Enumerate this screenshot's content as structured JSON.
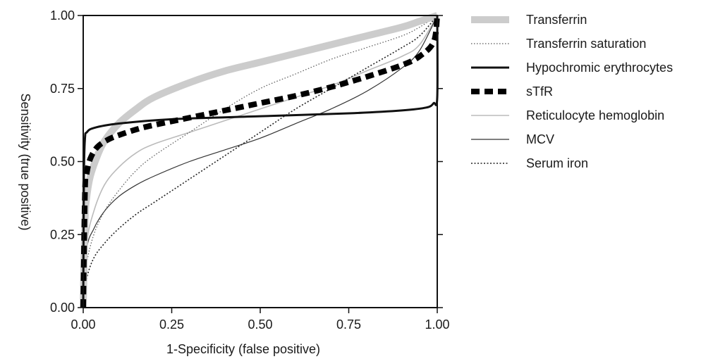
{
  "chart_data": {
    "type": "line",
    "xlabel": "1-Specificity (false positive)",
    "ylabel": "Sensitivity (true positive)",
    "xlim": [
      0,
      1
    ],
    "ylim": [
      0,
      1
    ],
    "xticks": [
      "0.00",
      "0.25",
      "0.50",
      "0.75",
      "1.00"
    ],
    "yticks": [
      "0.00",
      "0.25",
      "0.50",
      "0.75",
      "1.00"
    ],
    "grid": false,
    "legend": "right",
    "series": [
      {
        "name": "Transferrin",
        "style": "thick-light-gray",
        "color": "#cccccc",
        "x": [
          0,
          0.005,
          0.01,
          0.02,
          0.04,
          0.06,
          0.1,
          0.15,
          0.2,
          0.3,
          0.4,
          0.5,
          0.6,
          0.7,
          0.8,
          0.9,
          0.95,
          1.0
        ],
        "y": [
          0,
          0.3,
          0.38,
          0.45,
          0.52,
          0.57,
          0.63,
          0.68,
          0.72,
          0.77,
          0.81,
          0.84,
          0.87,
          0.9,
          0.93,
          0.96,
          0.98,
          1.0
        ]
      },
      {
        "name": "Transferrin saturation",
        "style": "dotted-thin",
        "color": "#555555",
        "x": [
          0,
          0.01,
          0.03,
          0.06,
          0.1,
          0.15,
          0.2,
          0.3,
          0.4,
          0.5,
          0.6,
          0.7,
          0.8,
          0.9,
          0.95,
          1.0
        ],
        "y": [
          0,
          0.15,
          0.25,
          0.33,
          0.4,
          0.47,
          0.52,
          0.6,
          0.68,
          0.75,
          0.8,
          0.85,
          0.89,
          0.93,
          0.96,
          1.0
        ]
      },
      {
        "name": "Hypochromic erythrocytes",
        "style": "solid-medium-black",
        "color": "#111111",
        "x": [
          0,
          0.002,
          0.005,
          0.01,
          0.03,
          0.1,
          0.25,
          0.5,
          0.75,
          0.9,
          0.97,
          0.99,
          1.0,
          1.0
        ],
        "y": [
          0,
          0.45,
          0.58,
          0.6,
          0.615,
          0.63,
          0.645,
          0.655,
          0.665,
          0.675,
          0.685,
          0.7,
          0.72,
          1.0
        ]
      },
      {
        "name": "sTfR",
        "style": "thick-dashed-black",
        "color": "#000000",
        "x": [
          0,
          0.005,
          0.01,
          0.02,
          0.04,
          0.07,
          0.1,
          0.15,
          0.2,
          0.3,
          0.4,
          0.5,
          0.6,
          0.7,
          0.8,
          0.9,
          0.95,
          0.99,
          1.0
        ],
        "y": [
          0,
          0.4,
          0.46,
          0.51,
          0.55,
          0.575,
          0.59,
          0.61,
          0.625,
          0.65,
          0.675,
          0.7,
          0.725,
          0.755,
          0.79,
          0.83,
          0.86,
          0.91,
          1.0
        ]
      },
      {
        "name": "Reticulocyte hemoglobin",
        "style": "solid-thin-gray",
        "color": "#bbbbbb",
        "x": [
          0,
          0.01,
          0.03,
          0.06,
          0.1,
          0.15,
          0.2,
          0.3,
          0.4,
          0.5,
          0.6,
          0.7,
          0.8,
          0.9,
          0.95,
          1.0
        ],
        "y": [
          0,
          0.22,
          0.33,
          0.42,
          0.48,
          0.53,
          0.56,
          0.6,
          0.64,
          0.68,
          0.72,
          0.76,
          0.81,
          0.86,
          0.9,
          1.0
        ]
      },
      {
        "name": "MCV",
        "style": "solid-thin-black",
        "color": "#333333",
        "x": [
          0,
          0.01,
          0.03,
          0.06,
          0.1,
          0.15,
          0.2,
          0.3,
          0.4,
          0.5,
          0.6,
          0.7,
          0.8,
          0.9,
          0.95,
          1.0
        ],
        "y": [
          0,
          0.2,
          0.27,
          0.33,
          0.38,
          0.42,
          0.45,
          0.5,
          0.54,
          0.58,
          0.63,
          0.68,
          0.74,
          0.82,
          0.88,
          1.0
        ]
      },
      {
        "name": "Serum iron",
        "style": "dotted-black",
        "color": "#222222",
        "x": [
          0,
          0.01,
          0.03,
          0.06,
          0.1,
          0.15,
          0.2,
          0.3,
          0.4,
          0.5,
          0.6,
          0.7,
          0.8,
          0.9,
          0.95,
          1.0
        ],
        "y": [
          0,
          0.1,
          0.17,
          0.22,
          0.27,
          0.32,
          0.36,
          0.44,
          0.52,
          0.6,
          0.68,
          0.75,
          0.82,
          0.89,
          0.93,
          1.0
        ]
      }
    ]
  }
}
